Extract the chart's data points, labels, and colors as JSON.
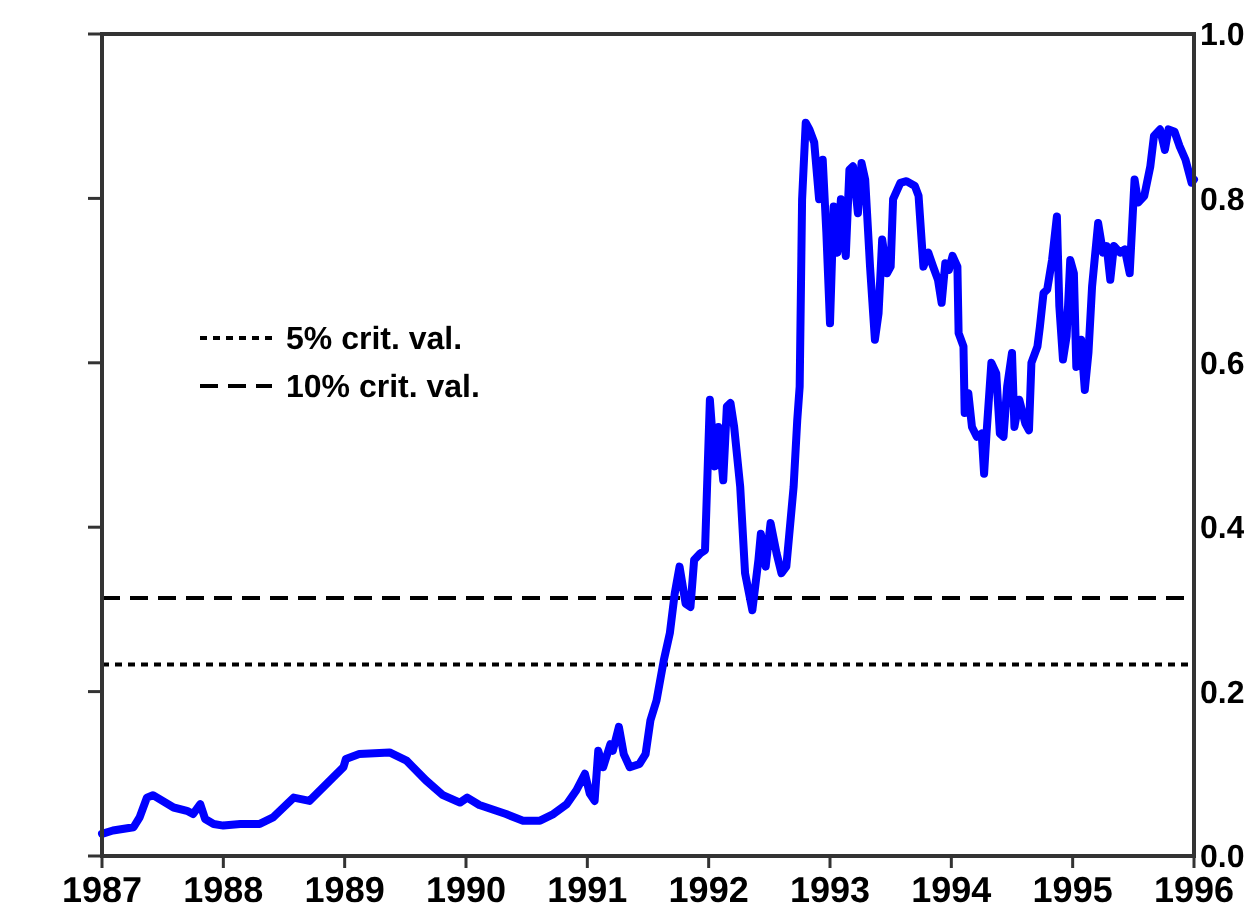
{
  "chart_data": {
    "type": "line",
    "x": [
      1987.0,
      1987.09,
      1987.26,
      1987.31,
      1987.37,
      1987.42,
      1987.59,
      1987.7,
      1987.75,
      1987.81,
      1987.85,
      1987.92,
      1988.0,
      1988.14,
      1988.3,
      1988.41,
      1988.58,
      1988.71,
      1988.88,
      1988.99,
      1989.01,
      1989.12,
      1989.37,
      1989.51,
      1989.67,
      1989.81,
      1989.95,
      1990.01,
      1990.11,
      1990.33,
      1990.47,
      1990.61,
      1990.72,
      1990.83,
      1990.91,
      1990.98,
      1991.02,
      1991.06,
      1991.09,
      1991.13,
      1991.19,
      1991.21,
      1991.26,
      1991.3,
      1991.35,
      1991.43,
      1991.48,
      1991.52,
      1991.57,
      1991.63,
      1991.68,
      1991.72,
      1991.76,
      1991.81,
      1991.85,
      1991.88,
      1991.93,
      1991.97,
      1992.01,
      1992.05,
      1992.08,
      1992.12,
      1992.15,
      1992.18,
      1992.21,
      1992.26,
      1992.3,
      1992.36,
      1992.41,
      1992.43,
      1992.47,
      1992.51,
      1992.56,
      1992.6,
      1992.64,
      1992.7,
      1992.73,
      1992.75,
      1992.77,
      1992.8,
      1992.83,
      1992.87,
      1992.91,
      1992.94,
      1992.97,
      1993.0,
      1993.03,
      1993.06,
      1993.09,
      1993.13,
      1993.16,
      1993.19,
      1993.23,
      1993.26,
      1993.29,
      1993.33,
      1993.37,
      1993.4,
      1993.43,
      1993.47,
      1993.5,
      1993.52,
      1993.58,
      1993.63,
      1993.7,
      1993.73,
      1993.77,
      1993.81,
      1993.85,
      1993.89,
      1993.92,
      1993.95,
      1993.98,
      1994.01,
      1994.05,
      1994.06,
      1994.1,
      1994.11,
      1994.14,
      1994.17,
      1994.21,
      1994.25,
      1994.27,
      1994.29,
      1994.33,
      1994.37,
      1994.4,
      1994.43,
      1994.46,
      1994.5,
      1994.52,
      1994.56,
      1994.61,
      1994.64,
      1994.66,
      1994.71,
      1994.73,
      1994.76,
      1994.79,
      1994.83,
      1994.87,
      1994.89,
      1994.92,
      1994.95,
      1994.98,
      1995.01,
      1995.03,
      1995.07,
      1995.1,
      1995.13,
      1995.16,
      1995.21,
      1995.25,
      1995.28,
      1995.31,
      1995.34,
      1995.39,
      1995.43,
      1995.47,
      1995.51,
      1995.54,
      1995.59,
      1995.64,
      1995.67,
      1995.72,
      1995.76,
      1995.79,
      1995.84,
      1995.88,
      1995.93,
      1995.98,
      1996.0
    ],
    "series": [
      {
        "color": "#0000ff",
        "values": [
          0.027,
          0.031,
          0.035,
          0.047,
          0.071,
          0.074,
          0.059,
          0.055,
          0.051,
          0.063,
          0.045,
          0.039,
          0.037,
          0.039,
          0.039,
          0.047,
          0.071,
          0.067,
          0.092,
          0.108,
          0.118,
          0.124,
          0.126,
          0.116,
          0.092,
          0.074,
          0.065,
          0.071,
          0.062,
          0.051,
          0.043,
          0.043,
          0.051,
          0.063,
          0.08,
          0.1,
          0.076,
          0.067,
          0.128,
          0.108,
          0.136,
          0.128,
          0.157,
          0.124,
          0.108,
          0.112,
          0.124,
          0.165,
          0.189,
          0.238,
          0.271,
          0.319,
          0.352,
          0.307,
          0.303,
          0.36,
          0.368,
          0.372,
          0.555,
          0.474,
          0.522,
          0.457,
          0.547,
          0.551,
          0.522,
          0.449,
          0.344,
          0.299,
          0.36,
          0.392,
          0.352,
          0.405,
          0.368,
          0.344,
          0.352,
          0.449,
          0.53,
          0.571,
          0.799,
          0.892,
          0.884,
          0.868,
          0.799,
          0.847,
          0.758,
          0.648,
          0.79,
          0.734,
          0.799,
          0.73,
          0.835,
          0.839,
          0.782,
          0.843,
          0.823,
          0.717,
          0.628,
          0.66,
          0.75,
          0.709,
          0.717,
          0.799,
          0.819,
          0.821,
          0.815,
          0.803,
          0.717,
          0.734,
          0.717,
          0.701,
          0.673,
          0.721,
          0.713,
          0.73,
          0.717,
          0.636,
          0.62,
          0.539,
          0.563,
          0.522,
          0.51,
          0.514,
          0.465,
          0.514,
          0.6,
          0.587,
          0.514,
          0.51,
          0.571,
          0.612,
          0.522,
          0.555,
          0.526,
          0.518,
          0.6,
          0.62,
          0.644,
          0.685,
          0.689,
          0.725,
          0.778,
          0.669,
          0.604,
          0.632,
          0.725,
          0.709,
          0.595,
          0.628,
          0.567,
          0.612,
          0.693,
          0.77,
          0.734,
          0.742,
          0.701,
          0.742,
          0.734,
          0.738,
          0.709,
          0.823,
          0.795,
          0.803,
          0.839,
          0.876,
          0.884,
          0.859,
          0.884,
          0.881,
          0.864,
          0.847,
          0.819,
          0.823
        ]
      }
    ],
    "xlim": [
      1987,
      1996
    ],
    "xticks": [
      1987,
      1988,
      1989,
      1990,
      1991,
      1992,
      1993,
      1994,
      1995,
      1996
    ],
    "ylim": [
      0,
      1
    ],
    "yticks": [
      {
        "value": 0,
        "label": "0.0"
      },
      0.2,
      0.4,
      0.6,
      0.8,
      {
        "value": 1,
        "label": "1.0"
      }
    ],
    "ref_lines": [
      {
        "axis": "y",
        "value": 0.233,
        "label": "5% crit. val.",
        "color": "#000000",
        "line_style": "dotted"
      },
      {
        "axis": "y",
        "value": 0.314,
        "label": "10% crit. val.",
        "color": "#000000",
        "line_style": "dashed"
      }
    ],
    "legend": "top left"
  }
}
